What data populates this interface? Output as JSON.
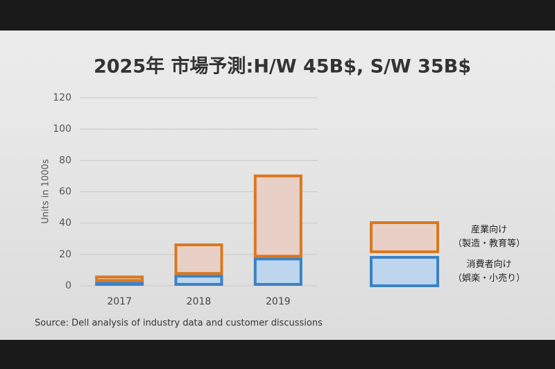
{
  "chart_data": {
    "type": "stacked_bar",
    "title": "2025年 市場予測:H/W 45B$, S/W 35B$",
    "y_label": "Units in 1000s",
    "source": "Source: Dell analysis of industry data and customer discussions",
    "categories": [
      "2017",
      "2018",
      "2019"
    ],
    "series": [
      {
        "name": "消費者向け\n（娯楽・小売り）",
        "color": "#3a82c4",
        "fill": "#bdd6ee",
        "values": [
          2.5,
          7,
          18
        ]
      },
      {
        "name": "産業向け\n（製造・教育等）",
        "color": "#d9781f",
        "fill": "#e9d0c6",
        "values": [
          4,
          20,
          53
        ]
      }
    ],
    "ylim": [
      0,
      120
    ],
    "yticks": [
      0,
      20,
      40,
      60,
      80,
      100,
      120
    ],
    "grid": true
  }
}
